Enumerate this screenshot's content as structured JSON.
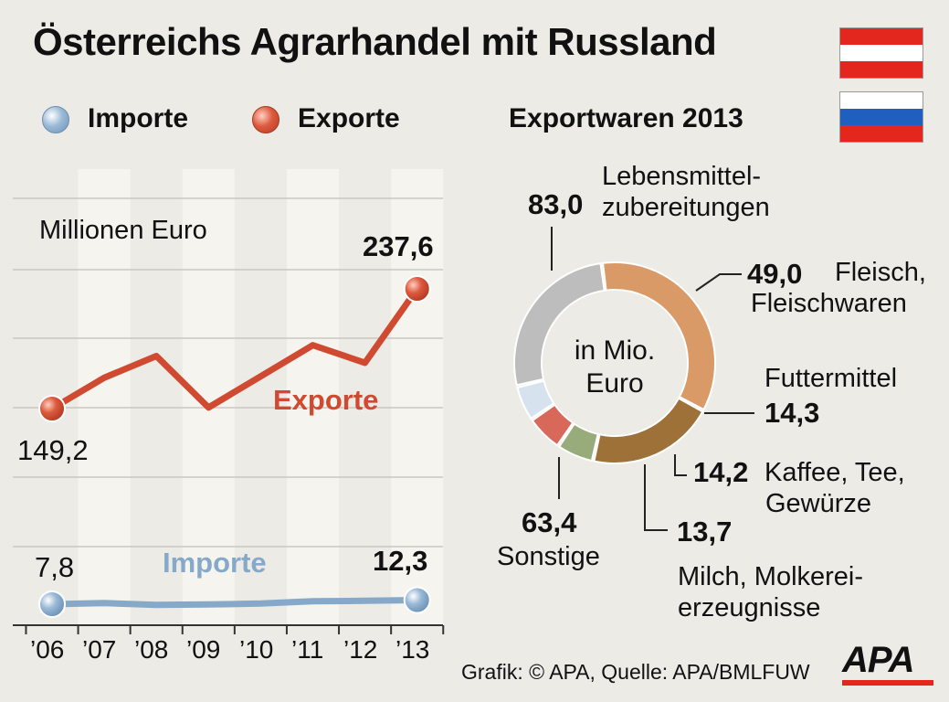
{
  "title": "Österreichs Agrarhandel mit Russland",
  "colors": {
    "background": "#ecebe6",
    "exports": "#cf4a30",
    "imports": "#86a9c9",
    "stripe": "#f5f4ef"
  },
  "legend": {
    "imports": "Importe",
    "exports": "Exporte"
  },
  "line_chart_unit": "Millionen Euro",
  "pie_title": "Exportwaren 2013",
  "pie_center": "in Mio. Euro",
  "source": "Grafik: © APA, Quelle: APA/BMLFUW",
  "logo": "APA",
  "flags": [
    "austria-flag",
    "russia-flag"
  ],
  "chart_data": [
    {
      "type": "line",
      "ylabel": "Millionen Euro",
      "x": [
        "’06",
        "’07",
        "’08",
        "’09",
        "’10",
        "’11",
        "’12",
        "’13"
      ],
      "series": [
        {
          "name": "Exporte",
          "values": [
            149.2,
            172,
            188,
            150,
            173,
            196,
            183,
            237.6
          ]
        },
        {
          "name": "Importe",
          "values": [
            7.8,
            9,
            7,
            7.5,
            8.5,
            11,
            11.5,
            12.3
          ]
        }
      ],
      "point_labels": {
        "exports_first": "149,2",
        "exports_last": "237,6",
        "imports_first": "7,8",
        "imports_last": "12,3"
      },
      "ylim": [
        0,
        275
      ],
      "grid": true
    },
    {
      "type": "pie",
      "title": "Exportwaren 2013",
      "slices": [
        {
          "value": 83.0,
          "value_label": "83,0",
          "label": "Lebensmittel- zubereitungen",
          "color": "#d99a68"
        },
        {
          "value": 49.0,
          "value_label": "49,0",
          "label": "Fleisch, Fleischwaren",
          "color": "#9e7139"
        },
        {
          "value": 14.3,
          "value_label": "14,3",
          "label": "Futtermittel",
          "color": "#98ab7a"
        },
        {
          "value": 14.2,
          "value_label": "14,2",
          "label": "Kaffee, Tee, Gewürze",
          "color": "#d8685a"
        },
        {
          "value": 13.7,
          "value_label": "13,7",
          "label": "Milch, Molkerei- erzeugnisse",
          "color": "#d6e3ef"
        },
        {
          "value": 63.4,
          "value_label": "63,4",
          "label": "Sonstige",
          "color": "#bdbdbd"
        }
      ]
    }
  ]
}
